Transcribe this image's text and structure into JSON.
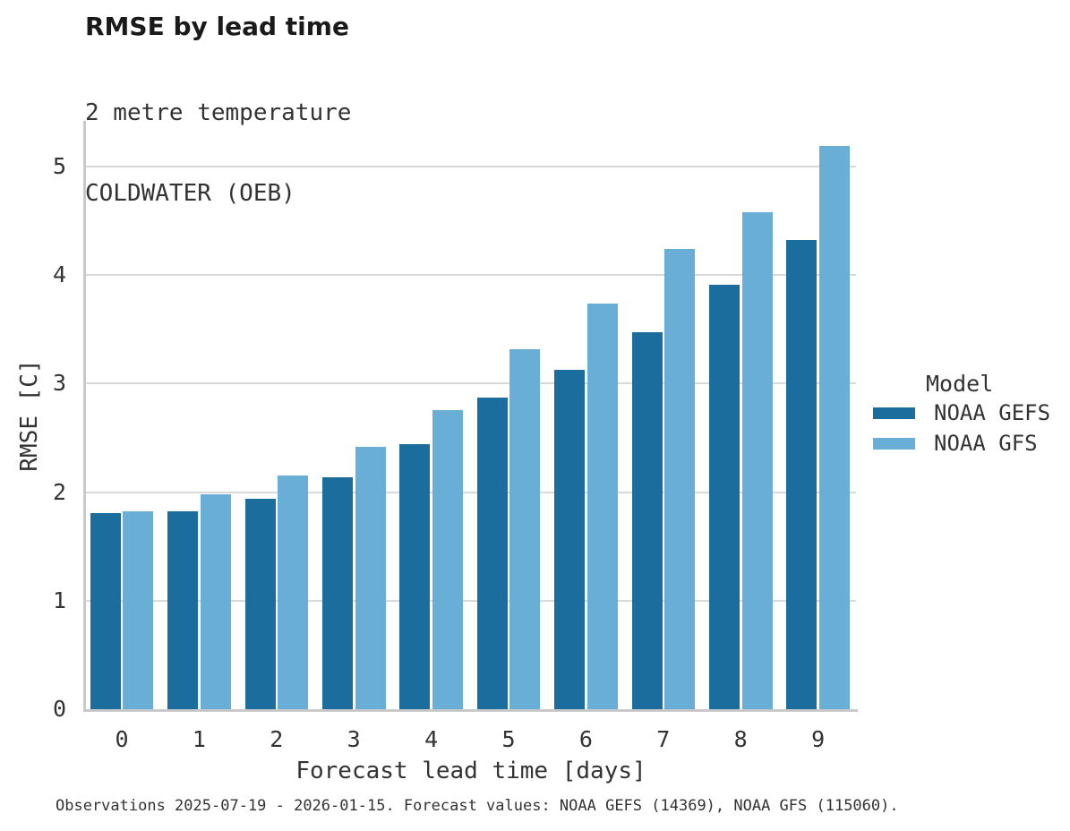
{
  "page": {
    "background": "#ffffff"
  },
  "chart_data": {
    "type": "bar",
    "title": "RMSE by lead time",
    "subtitle_lines": [
      "2 metre temperature",
      "COLDWATER (OEB)"
    ],
    "xlabel": "Forecast lead time [days]",
    "ylabel": "RMSE [C]",
    "categories": [
      "0",
      "1",
      "2",
      "3",
      "4",
      "5",
      "6",
      "7",
      "8",
      "9"
    ],
    "series": [
      {
        "name": "NOAA GEFS",
        "color": "#1a6d9c",
        "values": [
          1.81,
          1.82,
          1.94,
          2.14,
          2.44,
          2.87,
          3.13,
          3.47,
          3.91,
          4.32
        ]
      },
      {
        "name": "NOAA GFS",
        "color": "#69aed6",
        "values": [
          1.82,
          1.98,
          2.15,
          2.42,
          2.76,
          3.32,
          3.74,
          4.24,
          4.58,
          5.19
        ]
      }
    ],
    "ylim": [
      0,
      5.42
    ],
    "yticks": [
      0,
      1,
      2,
      3,
      4,
      5
    ],
    "grid": "horizontal-only",
    "legend": {
      "title": "Model",
      "position": "right"
    },
    "caption": "Observations 2025-07-19 - 2026-01-15. Forecast values: NOAA GEFS (14369), NOAA GFS (115060).",
    "colors": {
      "gridline": "#d9d9d9",
      "axis_line": "#c9c9c9",
      "text": "#333333",
      "title_text": "#1a1a1a"
    }
  }
}
